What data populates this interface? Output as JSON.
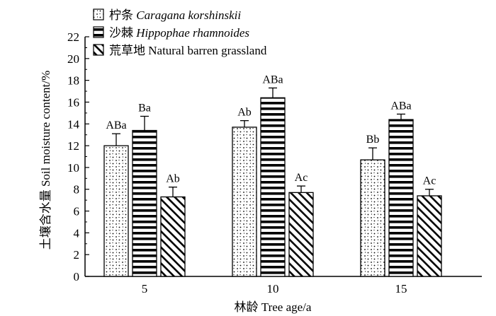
{
  "chart_data": {
    "type": "bar",
    "xlabel": "林龄 Tree age/a",
    "ylabel": "土壤含水量 Soil moisture content/%",
    "ylim": [
      0,
      22
    ],
    "yticks": [
      0,
      2,
      4,
      6,
      8,
      10,
      12,
      14,
      16,
      18,
      20,
      22
    ],
    "categories": [
      "5",
      "10",
      "15"
    ],
    "legend_position": "top-left",
    "series": [
      {
        "name_cn": "柠条",
        "name_latin": "Caragana korshinskii",
        "pattern": "dots",
        "values": [
          12.0,
          13.7,
          10.7
        ],
        "errors": [
          1.1,
          0.6,
          1.1
        ],
        "labels": [
          "ABa",
          "Ab",
          "Bb"
        ]
      },
      {
        "name_cn": "沙棘",
        "name_latin": "Hippophae rhamnoides",
        "pattern": "horizontal-stripes",
        "values": [
          13.4,
          16.4,
          14.4
        ],
        "errors": [
          1.3,
          0.9,
          0.5
        ],
        "labels": [
          "Ba",
          "ABa",
          "ABa"
        ]
      },
      {
        "name_cn": "荒草地",
        "name_latin": "Natural barren grassland",
        "pattern": "diagonal-hatch",
        "values": [
          7.3,
          7.7,
          7.4
        ],
        "errors": [
          0.9,
          0.6,
          0.6
        ],
        "labels": [
          "Ab",
          "Ac",
          "Ac"
        ]
      }
    ]
  }
}
